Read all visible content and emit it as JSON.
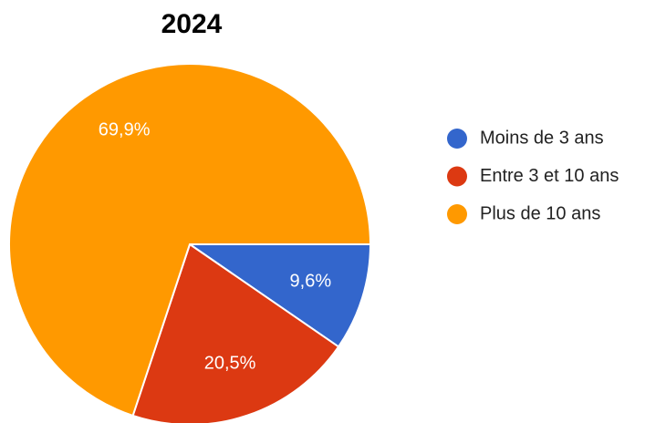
{
  "chart_data": {
    "type": "pie",
    "title": "2024",
    "categories": [
      "Moins de 3 ans",
      "Entre 3 et 10 ans",
      "Plus de 10 ans"
    ],
    "values": [
      9.6,
      20.5,
      69.9
    ],
    "value_labels": [
      "9,6%",
      "20,5%",
      "69,9%"
    ],
    "colors": [
      "#3366cc",
      "#dc3912",
      "#ff9900"
    ]
  }
}
